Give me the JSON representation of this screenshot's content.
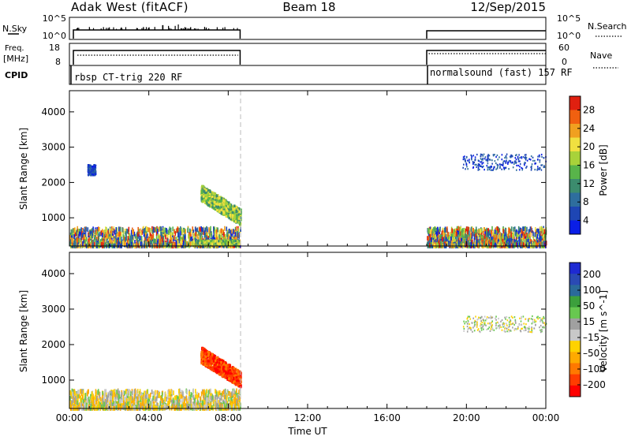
{
  "header": {
    "radar": "Adak West (fitACF)",
    "beam": "Beam 18",
    "date": "12/Sep/2015"
  },
  "panels": {
    "nsky": {
      "left_label": "N.Sky",
      "ticks_left": [
        "10^5",
        "10^0"
      ],
      "right_label": "N.Search",
      "ticks_right": [
        "10^5",
        "10^0"
      ]
    },
    "freq": {
      "left_label_1": "Freq.",
      "left_label_2": "[MHz]",
      "ticks_left": [
        "18",
        "8"
      ],
      "right_label": "Nave",
      "ticks_right": [
        "60",
        "0"
      ]
    },
    "cpid": {
      "label": "CPID",
      "mode_1": "rbsp CT-trig 220 RF",
      "mode_2": "normalsound (fast) 157 RF"
    }
  },
  "colors": {
    "power_scale": [
      "#0a1ee6",
      "#1e46b4",
      "#2e6e9e",
      "#3c8c6e",
      "#58b44a",
      "#a8d23a",
      "#f0e040",
      "#f0a020",
      "#f06010",
      "#e02010"
    ],
    "velocity_scale": [
      "#ff0000",
      "#ff3c00",
      "#ff7800",
      "#ffaa00",
      "#ffd200",
      "#c8c8c8",
      "#a0a0a0",
      "#68c850",
      "#3ca03c",
      "#2a6a9a",
      "#2a4ab4",
      "#1e2ad2"
    ]
  },
  "chart_data": [
    {
      "type": "heatmap",
      "name": "power",
      "xlabel": "",
      "ylabel": "Slant Range [km]",
      "x_ticks": [
        "00:00",
        "04:00",
        "08:00",
        "12:00",
        "16:00",
        "20:00",
        "00:00"
      ],
      "y_ticks": [
        "4000",
        "3000",
        "2000",
        "1000"
      ],
      "ylim": [
        200,
        4600
      ],
      "xlim_hours": [
        0,
        24
      ],
      "colorbar": {
        "label": "Power [dB]",
        "ticks": [
          "28",
          "24",
          "20",
          "16",
          "12",
          "8",
          "4"
        ],
        "range": [
          0,
          30
        ]
      },
      "data_gap_hours": [
        8.6,
        18.0
      ],
      "echo_regions": [
        {
          "t": [
            0.0,
            8.6
          ],
          "r": [
            200,
            700
          ],
          "level": "noise"
        },
        {
          "t": [
            6.4,
            8.5
          ],
          "r": [
            250,
            350
          ],
          "level": "strong"
        },
        {
          "t": [
            6.6,
            8.6
          ],
          "r": [
            900,
            1800
          ],
          "level": "strong"
        },
        {
          "t": [
            0.9,
            1.3
          ],
          "r": [
            2200,
            2500
          ],
          "level": "weak"
        },
        {
          "t": [
            18.0,
            24.0
          ],
          "r": [
            200,
            700
          ],
          "level": "noise"
        },
        {
          "t": [
            19.8,
            24.0
          ],
          "r": [
            2350,
            2800
          ],
          "level": "weak"
        }
      ]
    },
    {
      "type": "heatmap",
      "name": "velocity",
      "xlabel": "Time UT",
      "ylabel": "Slant Range [km]",
      "x_ticks": [
        "00:00",
        "04:00",
        "08:00",
        "12:00",
        "16:00",
        "20:00",
        "00:00"
      ],
      "y_ticks": [
        "4000",
        "3000",
        "2000",
        "1000"
      ],
      "ylim": [
        200,
        4600
      ],
      "xlim_hours": [
        0,
        24
      ],
      "colorbar": {
        "label": "Velocity [m s^-1]",
        "ticks": [
          "200",
          "100",
          "50",
          "15",
          "-15",
          "-50",
          "-100",
          "-200"
        ],
        "range": [
          -250,
          250
        ]
      },
      "data_gap_hours": [
        8.6,
        18.0
      ],
      "echo_regions": [
        {
          "t": [
            0.0,
            8.6
          ],
          "r": [
            200,
            700
          ],
          "level": "ground"
        },
        {
          "t": [
            6.6,
            8.6
          ],
          "r": [
            900,
            1800
          ],
          "level": "away"
        },
        {
          "t": [
            19.8,
            24.0
          ],
          "r": [
            2350,
            2800
          ],
          "level": "mixed"
        }
      ]
    }
  ]
}
